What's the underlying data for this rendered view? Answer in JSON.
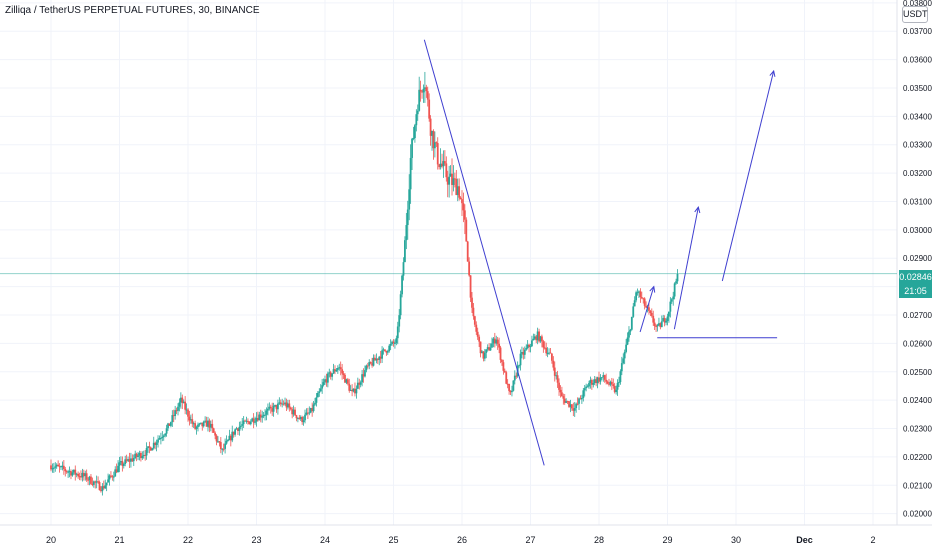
{
  "header": {
    "title": "Zilliqa / TetherUS PERPETUAL FUTURES, 30, BINANCE",
    "unit": "USDT"
  },
  "last_price": {
    "value": "0.02846",
    "countdown": "21:05",
    "color": "#26a69a"
  },
  "colors": {
    "up": "#26a69a",
    "down": "#ef5350",
    "drawing": "#3f3fd0",
    "grid": "#f0f3fa"
  },
  "chart_data": {
    "type": "candlestick",
    "y_ticks": [
      "0.02000",
      "0.02100",
      "0.02200",
      "0.02300",
      "0.02400",
      "0.02500",
      "0.02600",
      "0.02700",
      "0.02800",
      "0.02900",
      "0.03000",
      "0.03100",
      "0.03200",
      "0.03300",
      "0.03400",
      "0.03500",
      "0.03600",
      "0.03700",
      "0.03800"
    ],
    "x_ticks": [
      "20",
      "21",
      "22",
      "23",
      "24",
      "25",
      "26",
      "27",
      "28",
      "29",
      "30",
      "Dec",
      "2"
    ],
    "ylim": [
      0.0196,
      0.0381
    ],
    "price_trend": [
      [
        0.0,
        0.0217
      ],
      [
        0.5,
        0.0213
      ],
      [
        0.75,
        0.0209
      ],
      [
        1.0,
        0.0217
      ],
      [
        1.4,
        0.0222
      ],
      [
        1.7,
        0.023
      ],
      [
        1.9,
        0.024
      ],
      [
        2.0,
        0.0235
      ],
      [
        2.1,
        0.023
      ],
      [
        2.3,
        0.0232
      ],
      [
        2.5,
        0.0222
      ],
      [
        2.7,
        0.023
      ],
      [
        3.0,
        0.0234
      ],
      [
        3.4,
        0.0239
      ],
      [
        3.65,
        0.0233
      ],
      [
        3.8,
        0.0236
      ],
      [
        4.0,
        0.0247
      ],
      [
        4.2,
        0.0252
      ],
      [
        4.4,
        0.0242
      ],
      [
        4.6,
        0.0251
      ],
      [
        4.9,
        0.0258
      ],
      [
        5.05,
        0.0261
      ],
      [
        5.15,
        0.029
      ],
      [
        5.25,
        0.0325
      ],
      [
        5.35,
        0.0345
      ],
      [
        5.45,
        0.0354
      ],
      [
        5.55,
        0.0335
      ],
      [
        5.65,
        0.0325
      ],
      [
        5.8,
        0.0318
      ],
      [
        5.95,
        0.0315
      ],
      [
        6.05,
        0.03
      ],
      [
        6.15,
        0.027
      ],
      [
        6.3,
        0.0255
      ],
      [
        6.5,
        0.0262
      ],
      [
        6.7,
        0.0241
      ],
      [
        6.85,
        0.0255
      ],
      [
        7.1,
        0.0263
      ],
      [
        7.3,
        0.0255
      ],
      [
        7.45,
        0.0241
      ],
      [
        7.65,
        0.0237
      ],
      [
        7.85,
        0.0246
      ],
      [
        8.05,
        0.0248
      ],
      [
        8.25,
        0.0243
      ],
      [
        8.45,
        0.0265
      ],
      [
        8.55,
        0.0279
      ],
      [
        8.7,
        0.0272
      ],
      [
        8.85,
        0.0265
      ],
      [
        9.0,
        0.027
      ],
      [
        9.15,
        0.0284
      ]
    ],
    "annotations": {
      "trendline": [
        [
          5.45,
          0.0367
        ],
        [
          7.2,
          0.0217
        ]
      ],
      "arrow_small": [
        [
          8.6,
          0.0264
        ],
        [
          8.8,
          0.028
        ]
      ],
      "arrow_mid": [
        [
          9.1,
          0.0265
        ],
        [
          9.45,
          0.0308
        ]
      ],
      "arrow_long": [
        [
          9.8,
          0.0282
        ],
        [
          10.55,
          0.0356
        ]
      ],
      "support_line": [
        [
          8.85,
          0.0262
        ],
        [
          10.6,
          0.0262
        ]
      ]
    }
  }
}
